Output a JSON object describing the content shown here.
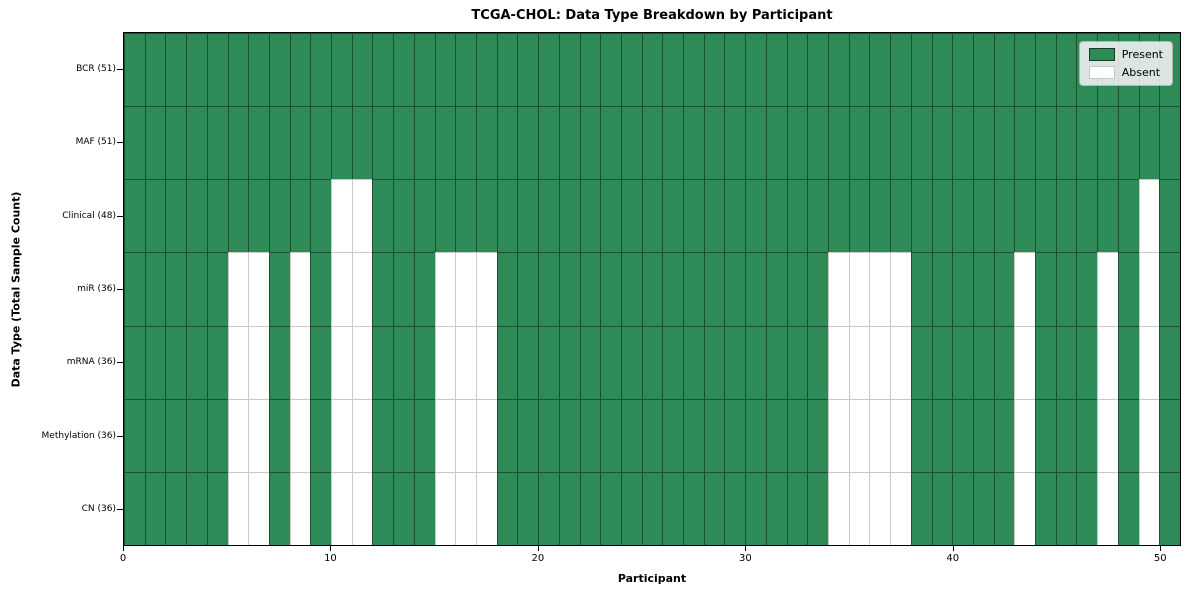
{
  "title": "TCGA-CHOL: Data Type Breakdown by Participant",
  "chart_data": {
    "type": "heatmap",
    "title": "TCGA-CHOL: Data Type Breakdown by Participant",
    "xlabel": "Participant",
    "ylabel": "Data Type (Total Sample Count)",
    "n_participants": 51,
    "x_range": [
      0,
      50
    ],
    "x_ticks": [
      0,
      10,
      20,
      30,
      40,
      50
    ],
    "grid": true,
    "legend_position": "upper right",
    "colors": {
      "present": "#2e8b57",
      "absent": "#ffffff"
    },
    "legend": [
      {
        "label": "Present",
        "state": "present",
        "color": "#2e8b57"
      },
      {
        "label": "Absent",
        "state": "absent",
        "color": "#ffffff"
      }
    ],
    "rows": [
      {
        "label": "BCR (51)",
        "total": 51,
        "absent_participants": []
      },
      {
        "label": "MAF (51)",
        "total": 51,
        "absent_participants": []
      },
      {
        "label": "Clinical (48)",
        "total": 48,
        "absent_participants": [
          10,
          11,
          49
        ]
      },
      {
        "label": "miR (36)",
        "total": 36,
        "absent_participants": [
          5,
          6,
          8,
          10,
          11,
          15,
          16,
          17,
          34,
          35,
          36,
          37,
          43,
          47,
          49
        ]
      },
      {
        "label": "mRNA (36)",
        "total": 36,
        "absent_participants": [
          5,
          6,
          8,
          10,
          11,
          15,
          16,
          17,
          34,
          35,
          36,
          37,
          43,
          47,
          49
        ]
      },
      {
        "label": "Methylation (36)",
        "total": 36,
        "absent_participants": [
          5,
          6,
          8,
          10,
          11,
          15,
          16,
          17,
          34,
          35,
          36,
          37,
          43,
          47,
          49
        ]
      },
      {
        "label": "CN (36)",
        "total": 36,
        "absent_participants": [
          5,
          6,
          8,
          10,
          11,
          15,
          16,
          17,
          34,
          35,
          36,
          37,
          43,
          47,
          49
        ]
      }
    ]
  }
}
